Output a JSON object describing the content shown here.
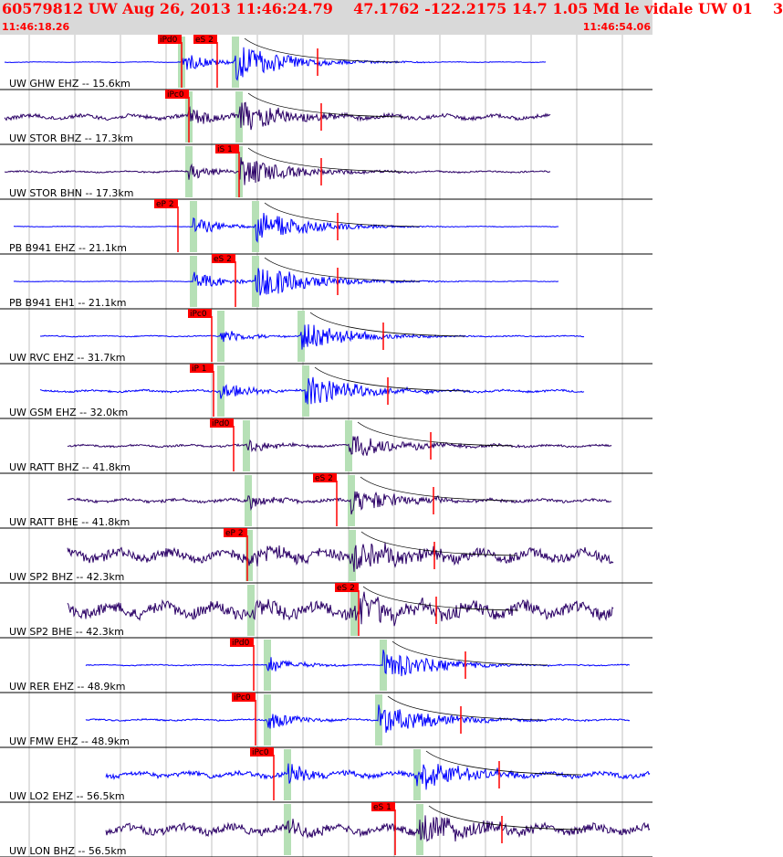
{
  "header": {
    "title": "60579812 UW Aug 26, 2013 11:46:24.79    47.1762 -122.2175 14.7 1.05 Md le vidale UW 01    3",
    "start_time": "11:46:18.26",
    "end_time": "11:46:54.06"
  },
  "colors": {
    "background": "#ffffff",
    "header_background": "#d9d9d9",
    "trace_blue": "#0000ff",
    "trace_purple": "#2b0066",
    "pick": "#ff0000",
    "window_green": "#b6e0b6",
    "time_gridline": "#c0c0c0"
  },
  "traces": [
    {
      "label": "UW GHW EHZ -- 15.6km",
      "color": "blue",
      "picks": [
        {
          "label": "iPd0",
          "t": 199
        },
        {
          "label": "eS 2",
          "t": 238
        }
      ]
    },
    {
      "label": "UW STOR BHZ -- 17.3km",
      "color": "purple",
      "picks": [
        {
          "label": "iPc0",
          "t": 207
        }
      ]
    },
    {
      "label": "UW STOR BHN -- 17.3km",
      "color": "purple",
      "picks": [
        {
          "label": "iS 1",
          "t": 262
        }
      ]
    },
    {
      "label": "PB B941 EHZ -- 21.1km",
      "color": "blue",
      "picks": [
        {
          "label": "eP 2",
          "t": 195
        }
      ]
    },
    {
      "label": "PB B941 EH1 -- 21.1km",
      "color": "blue",
      "picks": [
        {
          "label": "eS 2",
          "t": 258
        }
      ]
    },
    {
      "label": "UW RVC EHZ -- 31.7km",
      "color": "blue",
      "picks": [
        {
          "label": "iPc0",
          "t": 232
        }
      ]
    },
    {
      "label": "UW GSM EHZ -- 32.0km",
      "color": "blue",
      "picks": [
        {
          "label": "iP 1",
          "t": 234
        }
      ]
    },
    {
      "label": "UW RATT BHZ -- 41.8km",
      "color": "purple",
      "picks": [
        {
          "label": "iPd0",
          "t": 256
        }
      ]
    },
    {
      "label": "UW RATT BHE -- 41.8km",
      "color": "purple",
      "picks": [
        {
          "label": "eS 2",
          "t": 369
        }
      ]
    },
    {
      "label": "UW SP2 BHZ -- 42.3km",
      "color": "purple",
      "picks": [
        {
          "label": "eP 2",
          "t": 271
        }
      ]
    },
    {
      "label": "UW SP2 BHE -- 42.3km",
      "color": "purple",
      "picks": [
        {
          "label": "eS 2",
          "t": 393
        }
      ]
    },
    {
      "label": "UW RER EHZ -- 48.9km",
      "color": "blue",
      "picks": [
        {
          "label": "iPd0",
          "t": 278
        }
      ]
    },
    {
      "label": "UW FMW EHZ -- 48.9km",
      "color": "blue",
      "picks": [
        {
          "label": "iPc0",
          "t": 280
        }
      ]
    },
    {
      "label": "UW LO2 EHZ -- 56.5km",
      "color": "blue",
      "picks": [
        {
          "label": "iPc0",
          "t": 300
        }
      ]
    },
    {
      "label": "UW LON BHZ -- 56.5km",
      "color": "purple",
      "picks": [
        {
          "label": "eS 1",
          "t": 433
        }
      ]
    }
  ]
}
